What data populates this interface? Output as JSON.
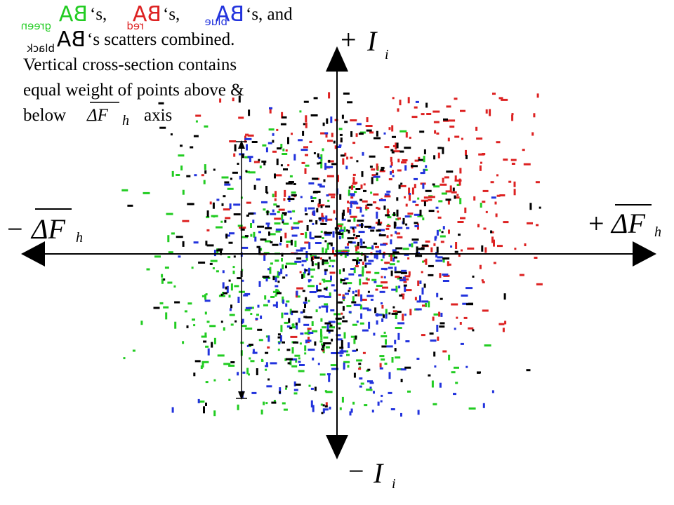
{
  "legend_items": [
    {
      "symbol": "BA",
      "subscript": "green",
      "color": "#22cc22",
      "suffix": "‘s,"
    },
    {
      "symbol": "BA",
      "subscript": "red",
      "color": "#dd2222",
      "suffix": "‘s,"
    },
    {
      "symbol": "BA",
      "subscript": "blue",
      "color": "#2233dd",
      "suffix": "‘s, and"
    },
    {
      "symbol": "BA",
      "subscript": "black",
      "color": "#000000",
      "suffix": "‘s scatters combined."
    }
  ],
  "note": {
    "lines": [
      "Vertical cross-section contains",
      "equal weight of points above &",
      "below",
      "axis"
    ],
    "symbol": "ΔF",
    "subscript": "h"
  },
  "axes": {
    "top": {
      "sign": "+",
      "symbol": "I",
      "subscript": "i"
    },
    "bottom": {
      "sign": "−",
      "symbol": "I",
      "subscript": "i"
    },
    "left": {
      "sign": "−",
      "symbol": "ΔF",
      "subscript": "h"
    },
    "right": {
      "sign": "+",
      "symbol": "ΔF",
      "subscript": "h"
    }
  }
}
